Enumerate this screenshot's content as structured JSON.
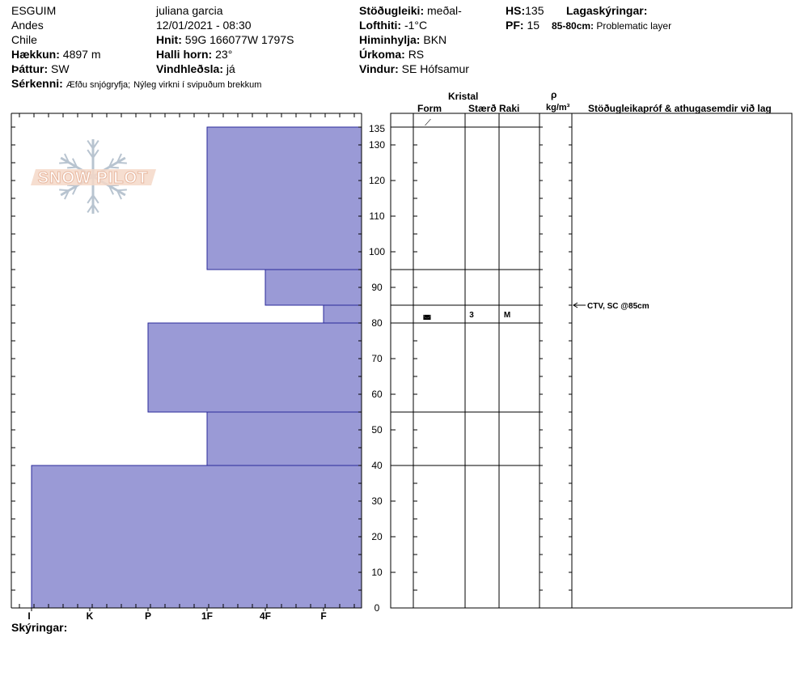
{
  "header": {
    "location": "ESGUIM",
    "range": "Andes",
    "country": "Chile",
    "elevation_label": "Hækkun:",
    "elevation_value": "4897 m",
    "aspect_label": "Þáttur:",
    "aspect_value": "SW",
    "features_label": "Sérkenni:",
    "features_value1": "Æfðu snjógryfja;",
    "features_value2": "Nýleg virkni í svipuðum brekkum",
    "observer": "juliana garcia",
    "datetime": "12/01/2021 - 08:30",
    "coords_label": "Hnit:",
    "coords_value": "59G 166077W 1797S",
    "slope_label": "Halli horn:",
    "slope_value": "23°",
    "wind_loading_label": "Vindhleðsla:",
    "wind_loading_value": "já",
    "stability_label": "Stöðugleiki:",
    "stability_value": "meðal-",
    "air_temp_label": "Lofthiti:",
    "air_temp_value": "-1°C",
    "sky_label": "Himinhylja:",
    "sky_value": "BKN",
    "precip_label": "Úrkoma:",
    "precip_value": "RS",
    "wind_label": "Vindur:",
    "wind_value": "SE Hófsamur",
    "hs_label": "HS:",
    "hs_value": "135",
    "pf_label": "PF:",
    "pf_value": "15",
    "layer_notes_label": "Lagaskýringar:",
    "layer_note_range": "85-80cm:",
    "layer_note_text": "Problematic layer"
  },
  "logo": {
    "text": "SNOW PILOT"
  },
  "table_headers": {
    "crystal": "Kristal",
    "form": "Form",
    "size": "Stærð",
    "moisture": "Raki",
    "rho": "ρ",
    "density_unit": "kg/m³",
    "tests": "Stöðugleikapróf & athugasemdir við lag"
  },
  "footer": {
    "notes_label": "Skýringar:"
  },
  "layer_details": [
    {
      "form_symbol": "⟋",
      "at_top": 135
    },
    {
      "form_symbol": "◛",
      "size": "3",
      "moisture": "M",
      "mid": 82.5
    }
  ],
  "test_note": "CTV, SC @85cm",
  "colors": {
    "fill": "#9a9ad6",
    "stroke": "#2a2a9a",
    "logo_text": "#e8b8a0",
    "logo_flake": "#b8c4d0"
  },
  "chart_data": {
    "type": "bar",
    "orientation": "horizontal",
    "title": "",
    "y_axis": {
      "label": "",
      "min": 0,
      "max": 135,
      "ticks": [
        0,
        10,
        20,
        30,
        40,
        50,
        60,
        70,
        80,
        90,
        100,
        110,
        120,
        130,
        135
      ]
    },
    "x_axis": {
      "categories": [
        "I",
        "K",
        "P",
        "1F",
        "4F",
        "F"
      ]
    },
    "layers": [
      {
        "top": 135,
        "bottom": 95,
        "hardness": "1F"
      },
      {
        "top": 95,
        "bottom": 85,
        "hardness": "4F"
      },
      {
        "top": 85,
        "bottom": 80,
        "hardness": "F"
      },
      {
        "top": 80,
        "bottom": 55,
        "hardness": "P"
      },
      {
        "top": 55,
        "bottom": 40,
        "hardness": "1F"
      },
      {
        "top": 40,
        "bottom": 0,
        "hardness": "I"
      }
    ]
  }
}
